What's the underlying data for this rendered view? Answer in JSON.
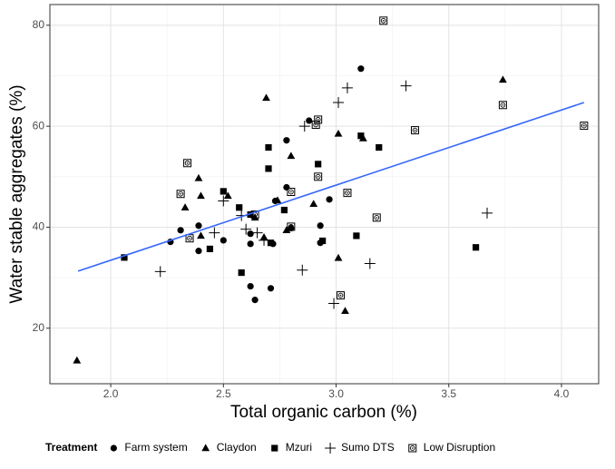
{
  "chart_data": {
    "type": "scatter",
    "x_label": "Total organic carbon (%)",
    "y_label": "Water stable aggregates (%)",
    "xlim": [
      1.73,
      4.165
    ],
    "ylim": [
      9.0,
      84.1
    ],
    "xticks": [
      {
        "value": 2,
        "label": "2.0"
      },
      {
        "value": 2.5,
        "label": "2.5"
      },
      {
        "value": 3,
        "label": "3.0"
      },
      {
        "value": 3.5,
        "label": "3.5"
      },
      {
        "value": 4,
        "label": "4.0"
      }
    ],
    "yticks": [
      20,
      40,
      60,
      80
    ],
    "grid": true,
    "minor_grid": true,
    "legend_title": "Treatment",
    "legend_position": "bottom",
    "series": [
      {
        "name": "Farm system",
        "color": "#000000",
        "shape": "circle",
        "x": [
          2.265,
          2.31,
          2.39,
          2.39,
          2.5,
          2.62,
          2.62,
          2.62,
          2.64,
          2.71,
          2.72,
          2.73,
          2.78,
          2.78,
          2.8,
          2.88,
          2.93,
          2.93,
          2.97,
          3.11
        ],
        "values": [
          37.1,
          39.4,
          40.3,
          35.3,
          37.4,
          36.7,
          38.7,
          28.3,
          25.6,
          27.9,
          36.7,
          45.2,
          57.2,
          47.9,
          39.8,
          61.1,
          40.3,
          36.9,
          45.5,
          71.4
        ]
      },
      {
        "name": "Claydon",
        "color": "#000000",
        "shape": "triangle",
        "x": [
          1.85,
          2.33,
          2.39,
          2.4,
          2.4,
          2.52,
          2.64,
          2.68,
          2.69,
          2.74,
          2.8,
          2.78,
          2.9,
          3.01,
          3.01,
          3.04,
          3.12,
          3.74
        ],
        "values": [
          13.6,
          43.9,
          49.7,
          46.2,
          38.3,
          46.2,
          41.9,
          38.0,
          65.6,
          45.3,
          54.1,
          39.4,
          44.6,
          58.5,
          33.9,
          23.4,
          57.6,
          69.2
        ]
      },
      {
        "name": "Mzuri",
        "color": "#000000",
        "shape": "square",
        "x": [
          2.06,
          2.44,
          2.5,
          2.57,
          2.58,
          2.62,
          2.7,
          2.7,
          2.71,
          2.77,
          2.92,
          2.94,
          3.09,
          3.11,
          3.19,
          3.62
        ],
        "values": [
          34.0,
          35.7,
          47.1,
          43.9,
          31.0,
          42.5,
          55.8,
          51.6,
          36.9,
          43.4,
          52.5,
          37.3,
          38.3,
          58.1,
          55.8,
          36.0
        ]
      },
      {
        "name": "Sumo DTS",
        "color": "#000000",
        "shape": "plus",
        "x": [
          2.22,
          2.46,
          2.5,
          2.58,
          2.6,
          2.65,
          2.68,
          2.85,
          2.86,
          3.01,
          3.05,
          2.99,
          3.15,
          3.31,
          3.67
        ],
        "values": [
          31.2,
          38.9,
          45.2,
          42.3,
          39.6,
          38.9,
          37.4,
          31.5,
          60.0,
          64.7,
          67.6,
          24.9,
          32.8,
          68.0,
          42.8
        ]
      },
      {
        "name": "Low Disruption",
        "color": "#000000",
        "shape": "boxdot",
        "x": [
          2.34,
          2.31,
          2.35,
          2.64,
          2.8,
          2.8,
          2.91,
          2.92,
          2.92,
          3.05,
          3.02,
          3.18,
          3.21,
          3.35,
          3.74,
          4.1
        ],
        "values": [
          52.7,
          46.6,
          37.8,
          42.5,
          47.0,
          40.1,
          60.3,
          61.3,
          50.0,
          46.8,
          26.5,
          41.9,
          80.9,
          59.2,
          64.2,
          60.1
        ]
      }
    ],
    "trend_line": {
      "color": "#3366ff",
      "x": [
        1.855,
        4.1
      ],
      "values": [
        31.3,
        64.7
      ]
    }
  }
}
